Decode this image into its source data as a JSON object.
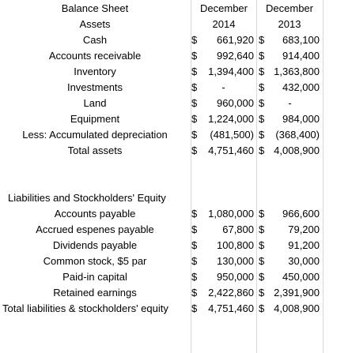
{
  "header": {
    "title": "Balance Sheet",
    "col1_line1": "December",
    "col1_line2": "2014",
    "col2_line1": "December",
    "col2_line2": "2013"
  },
  "assets": {
    "heading": "Assets",
    "rows": [
      {
        "label": "Cash",
        "v2014_sym": "$",
        "v2014": "661,920",
        "v2013_sym": "$",
        "v2013": "683,100"
      },
      {
        "label": "Accounts receivable",
        "v2014_sym": "$",
        "v2014": "992,640",
        "v2013_sym": "$",
        "v2013": "914,400"
      },
      {
        "label": "Inventory",
        "v2014_sym": "$",
        "v2014": "1,394,400",
        "v2013_sym": "$",
        "v2013": "1,363,800"
      },
      {
        "label": "Investments",
        "v2014_sym": "$",
        "v2014": "-",
        "v2013_sym": "$",
        "v2013": "432,000"
      },
      {
        "label": "Land",
        "v2014_sym": "$",
        "v2014": "960,000",
        "v2013_sym": "$",
        "v2013": "-"
      },
      {
        "label": "Equipment",
        "v2014_sym": "$",
        "v2014": "1,224,000",
        "v2013_sym": "$",
        "v2013": "984,000"
      },
      {
        "label": "Less: Accumulated depreciation",
        "v2014_sym": "$",
        "v2014": "(481,500)",
        "v2013_sym": "$",
        "v2013": "(368,400)"
      },
      {
        "label": "Total assets",
        "v2014_sym": "$",
        "v2014": "4,751,460",
        "v2013_sym": "$",
        "v2013": "4,008,900"
      }
    ]
  },
  "liabilities": {
    "heading": "Liabilities and Stockholders' Equity",
    "rows": [
      {
        "label": "Accounts payable",
        "v2014_sym": "$",
        "v2014": "1,080,000",
        "v2013_sym": "$",
        "v2013": "966,600"
      },
      {
        "label": "Accrued espenes payable",
        "v2014_sym": "$",
        "v2014": "67,800",
        "v2013_sym": "$",
        "v2013": "79,200"
      },
      {
        "label": "Dividends payable",
        "v2014_sym": "$",
        "v2014": "100,800",
        "v2013_sym": "$",
        "v2013": "91,200"
      },
      {
        "label": "Common stock, $5 par",
        "v2014_sym": "$",
        "v2014": "130,000",
        "v2013_sym": "$",
        "v2013": "30,000"
      },
      {
        "label": "Paid-in capital",
        "v2014_sym": "$",
        "v2014": "950,000",
        "v2013_sym": "$",
        "v2013": "450,000"
      },
      {
        "label": "Retained earnings",
        "v2014_sym": "$",
        "v2014": "2,422,860",
        "v2013_sym": "$",
        "v2013": "2,391,900"
      },
      {
        "label": "Total liabilities & stockholders' equity",
        "v2014_sym": "$",
        "v2014": "4,751,460",
        "v2013_sym": "$",
        "v2013": "4,008,900"
      }
    ]
  }
}
